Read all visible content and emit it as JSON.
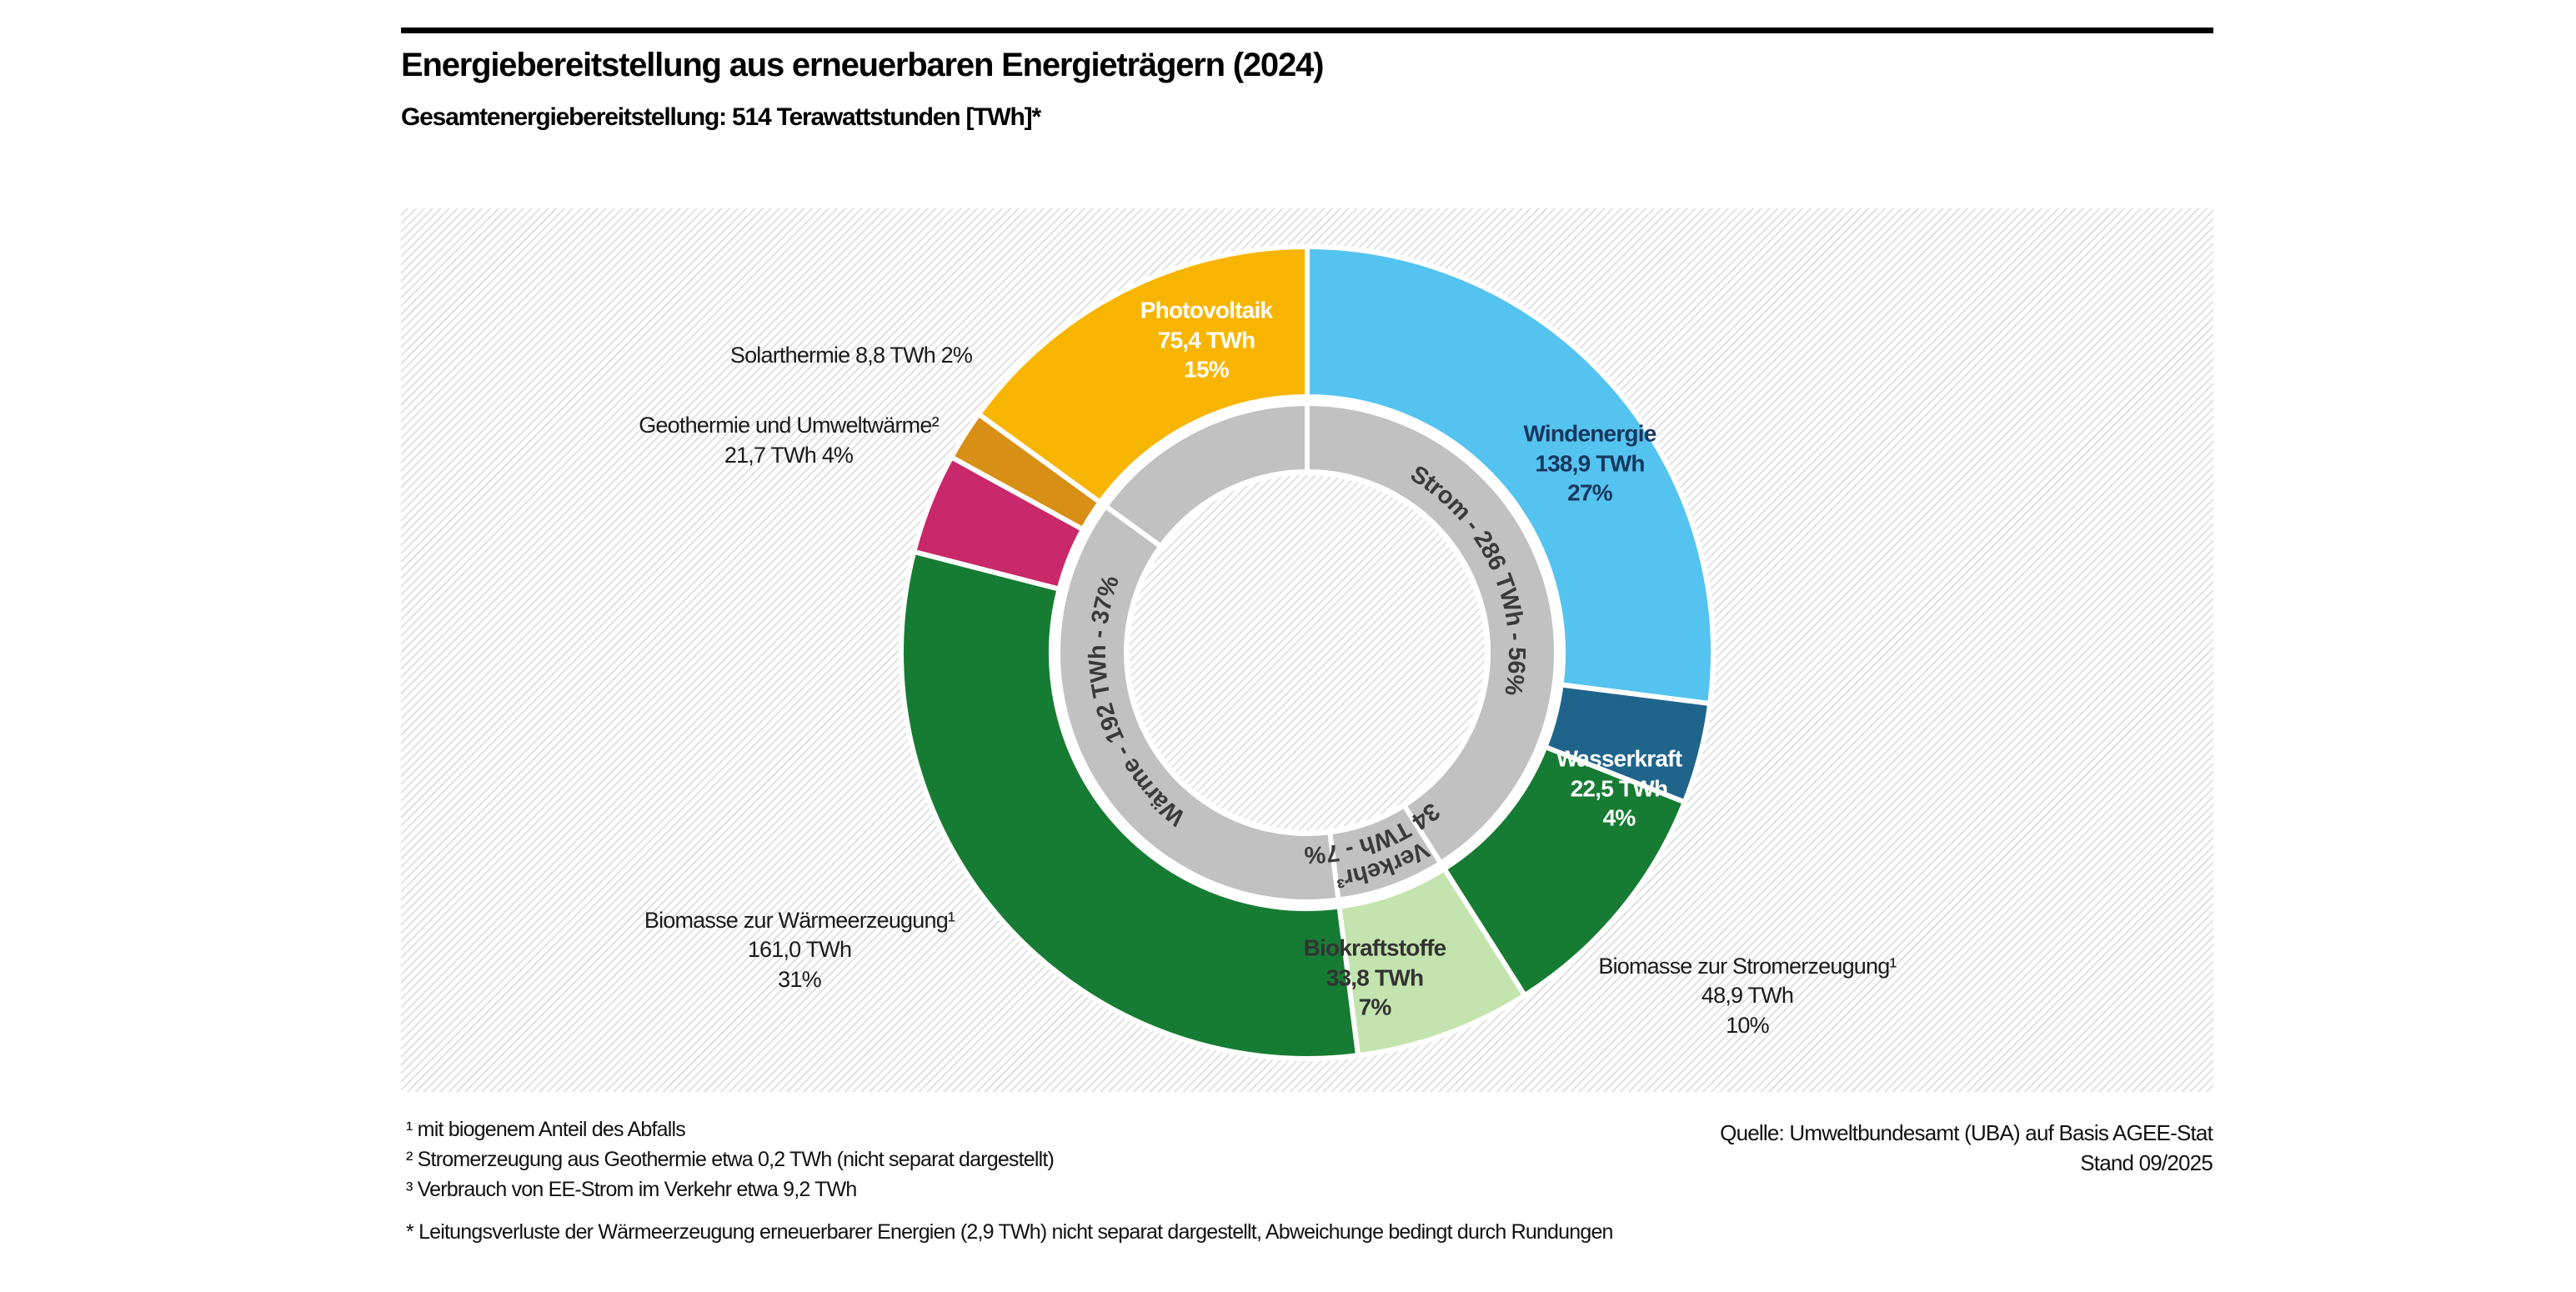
{
  "header": {
    "title": "Energiebereitstellung aus erneuerbaren Energieträgern (2024)",
    "subtitle": "Gesamtenergiebereitstellung: 514 Terawattstunden [TWh]*"
  },
  "chart_data": {
    "type": "pie",
    "subtype": "double-ring-donut",
    "title": "Energiebereitstellung aus erneuerbaren Energieträgern (2024)",
    "unit": "TWh",
    "total_twh": 514,
    "legend_position": "labels-on-chart",
    "outer_segments": [
      {
        "label": "Windenergie",
        "value_twh": 138.9,
        "percent": 27,
        "color": "#55C3F0",
        "text_color": "#17375E",
        "label_lines": [
          "Windenergie",
          "138,9 TWh",
          "27%"
        ],
        "label_inside": true
      },
      {
        "label": "Wasserkraft",
        "value_twh": 22.5,
        "percent": 4,
        "color": "#1F648B",
        "text_color": "#FFFFFF",
        "label_lines": [
          "Wasserkraft",
          "22,5 TWh",
          "4%"
        ],
        "label_inside": true
      },
      {
        "label": "Biomasse zur Stromerzeugung¹",
        "value_twh": 48.9,
        "percent": 10,
        "color": "#177C33",
        "text_color": "#1A1A1A",
        "label_lines": [
          "Biomasse zur Stromerzeugung¹",
          "48,9 TWh",
          "10%"
        ],
        "label_inside": false
      },
      {
        "label": "Biokraftstoffe",
        "value_twh": 33.8,
        "percent": 7,
        "color": "#C3E4AE",
        "text_color": "#333333",
        "label_lines": [
          "Biokraftstoffe",
          "33,8 TWh",
          "7%"
        ],
        "label_inside": true
      },
      {
        "label": "Biomasse zur Wärmeerzeugung¹",
        "value_twh": 161.0,
        "percent": 31,
        "color": "#177C33",
        "text_color": "#1A1A1A",
        "label_lines": [
          "Biomasse zur Wärmeerzeugung¹",
          "161,0 TWh",
          "31%"
        ],
        "label_inside": false
      },
      {
        "label": "Geothermie und Umweltwärme²",
        "value_twh": 21.7,
        "percent": 4,
        "color": "#C9286B",
        "text_color": "#1A1A1A",
        "label_lines": [
          "Geothermie und Umweltwärme²",
          "21,7 TWh 4%"
        ],
        "label_inside": false
      },
      {
        "label": "Solarthermie",
        "value_twh": 8.8,
        "percent": 2,
        "color": "#D88F15",
        "text_color": "#1A1A1A",
        "label_lines": [
          "Solarthermie 8,8 TWh 2%"
        ],
        "label_inside": false
      },
      {
        "label": "Photovoltaik",
        "value_twh": 75.4,
        "percent": 15,
        "color": "#F8B500",
        "text_color": "#FFFFFF",
        "label_lines": [
          "Photovoltaik",
          "75,4 TWh",
          "15%"
        ],
        "label_inside": true
      }
    ],
    "inner_segments": [
      {
        "label": "Strom",
        "value_twh": 286,
        "percent": 56,
        "curved_text": "Strom - 286 TWh - 56%"
      },
      {
        "label": "Verkehr",
        "value_twh": 34,
        "percent": 7,
        "curved_lines": [
          "Verkehr³",
          "34 TWh - 7%"
        ]
      },
      {
        "label": "Wärme",
        "value_twh": 192,
        "percent": 37,
        "curved_text": "Wärme - 192 TWh - 37%"
      }
    ],
    "ring_color": "#C1C1C1",
    "ring_text_color": "#3A3A3A"
  },
  "footnotes": [
    "¹ mit biogenem Anteil des Abfalls",
    "² Stromerzeugung aus Geothermie etwa 0,2 TWh (nicht separat dargestellt)",
    "³ Verbrauch von EE-Strom im Verkehr etwa 9,2 TWh"
  ],
  "asterisk_note": "* Leitungsverluste der Wärmeerzeugung erneuerbarer Energien (2,9 TWh) nicht separat dargestellt, Abweichunge bedingt durch Rundungen",
  "source": {
    "line1": "Quelle: Umweltbundesamt (UBA) auf Basis AGEE-Stat",
    "line2": "Stand 09/2025"
  }
}
